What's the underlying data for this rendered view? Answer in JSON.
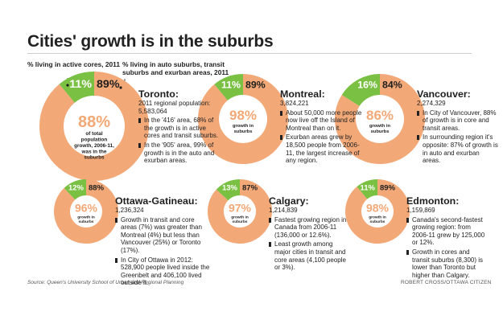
{
  "title": "Cities' growth is in the suburbs",
  "legend": {
    "active": "% living in active cores, 2011",
    "auto": "% living in auto suburbs, transit suburbs and exurban areas, 2011"
  },
  "colors": {
    "green": "#7ac043",
    "orange": "#f2a877",
    "dot": "#1e1e1e"
  },
  "chart_data": [
    {
      "type": "pie",
      "city": "Toronto:",
      "population_label": "2011 regional population:",
      "population": "5,583,064",
      "categories": [
        "% living in active cores, 2011",
        "% living in auto suburbs, transit suburbs and exurban areas, 2011"
      ],
      "values": [
        11,
        89
      ],
      "labels": [
        "11%",
        "89%"
      ],
      "center_value": "88%",
      "center_text": "of total population growth, 2006-11, was in the suburbs",
      "notes": [
        "In the '416' area, 68% of the growth is in active cores and transit suburbs.",
        "In the '905' area, 99% of growth is in the auto and exurban areas."
      ]
    },
    {
      "type": "pie",
      "city": "Montreal:",
      "population": "3,824,221",
      "categories": [
        "% living in active cores, 2011",
        "% living in auto suburbs, transit suburbs and exurban areas, 2011"
      ],
      "values": [
        11,
        89
      ],
      "labels": [
        "11%",
        "89%"
      ],
      "center_value": "98%",
      "center_text": "growth in suburbs",
      "notes": [
        "About 50,000 more people now live off the Island of Montreal than on it.",
        "Exurban areas grew by 18,500 people from 2006-11, the largest increase of any region."
      ]
    },
    {
      "type": "pie",
      "city": "Vancouver:",
      "population": "2,274,329",
      "categories": [
        "% living in active cores, 2011",
        "% living in auto suburbs, transit suburbs and exurban areas, 2011"
      ],
      "values": [
        16,
        84
      ],
      "labels": [
        "16%",
        "84%"
      ],
      "center_value": "86%",
      "center_text": "growth in suburbs",
      "notes": [
        "In City of Vancouver, 88% of growth is in core and transit areas.",
        "In surrounding region it's opposite: 87% of growth is in auto and exurban areas."
      ]
    },
    {
      "type": "pie",
      "city": "Ottawa-Gatineau:",
      "population": "1,236,324",
      "categories": [
        "% living in active cores, 2011",
        "% living in auto suburbs, transit suburbs and exurban areas, 2011"
      ],
      "values": [
        12,
        88
      ],
      "labels": [
        "12%",
        "88%"
      ],
      "center_value": "96%",
      "center_text": "growth in suburbs",
      "notes": [
        "Growth in transit and core areas (7%)  was greater than Montreal (4%) but less than Vancouver (25%) or Toronto (17%).",
        "In City of Ottawa in 2012: 528,900 people lived inside the Greenbelt and 406,100 lived outside it."
      ]
    },
    {
      "type": "pie",
      "city": "Calgary:",
      "population": "1,214,839",
      "categories": [
        "% living in active cores, 2011",
        "% living in auto suburbs, transit suburbs and exurban areas, 2011"
      ],
      "values": [
        13,
        87
      ],
      "labels": [
        "13%",
        "87%"
      ],
      "center_value": "97%",
      "center_text": "growth in suburbs",
      "notes": [
        "Fastest growing region in Canada from 2006-11 (136,000 or 12.6%).",
        "Least growth among major cities in transit and core areas (4,100 people or 3%)."
      ]
    },
    {
      "type": "pie",
      "city": "Edmonton:",
      "population": "1,159,869",
      "categories": [
        "% living in active cores, 2011",
        "% living in auto suburbs, transit suburbs and exurban areas, 2011"
      ],
      "values": [
        11,
        89
      ],
      "labels": [
        "11%",
        "89%"
      ],
      "center_value": "98%",
      "center_text": "growth in suburbs",
      "notes": [
        "Canada's second-fastest growing region: from 2006-11 grew by 125,000 or 12%.",
        "Growth in cores and transit suburbs (8,300) is lower than Toronto but higher than Calgary."
      ]
    }
  ],
  "source": "Source: Queen's University School of Urban and Regional Planning",
  "credit": "ROBERT CROSS/OTTAWA CITIZEN"
}
